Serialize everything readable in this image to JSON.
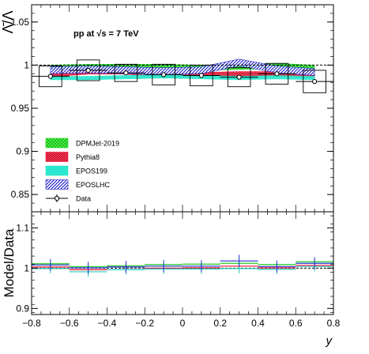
{
  "chart_data": [
    {
      "type": "scatter",
      "panel": "top",
      "ylabel": "Λ̄/Λ",
      "annotation": "pp at √s = 7 TeV",
      "xlim": [
        -0.8,
        0.8
      ],
      "ylim": [
        0.83,
        1.07
      ],
      "yticks": [
        0.85,
        0.9,
        0.95,
        1,
        1.05
      ],
      "reference_line": 1.0,
      "legend_position": "bottom-left",
      "data": {
        "name": "Data",
        "x": [
          -0.7,
          -0.5,
          -0.3,
          -0.1,
          0.1,
          0.3,
          0.5,
          0.7
        ],
        "y": [
          0.987,
          0.994,
          0.991,
          0.989,
          0.988,
          0.986,
          0.99,
          0.981
        ],
        "syst_x_halfwidth": 0.06,
        "syst_y_halfwidth": [
          0.012,
          0.012,
          0.01,
          0.012,
          0.012,
          0.011,
          0.012,
          0.013
        ],
        "stat_y_halfwidth": [
          0.002,
          0.002,
          0.002,
          0.002,
          0.002,
          0.002,
          0.002,
          0.002
        ]
      },
      "models": [
        {
          "name": "DPMJet-2019",
          "color": "#22dd22",
          "pattern": "crosshatch",
          "y": [
            0.997,
            0.998,
            0.998,
            0.998,
            0.997,
            0.998,
            0.999,
            0.997
          ],
          "band_halfwidth": 0.003
        },
        {
          "name": "Pythia8",
          "color": "#ee1133",
          "pattern": "dense",
          "y": [
            0.989,
            0.992,
            0.992,
            0.988,
            0.989,
            0.99,
            0.99,
            0.988
          ],
          "band_halfwidth": 0.0025
        },
        {
          "name": "EPOS199",
          "color": "#22e8c8",
          "pattern": "solid",
          "y": [
            0.985,
            0.985,
            0.986,
            0.987,
            0.986,
            0.985,
            0.986,
            0.985
          ],
          "band_halfwidth": 0.002
        },
        {
          "name": "EPOSLHC",
          "color": "#2222cc",
          "pattern": "hatch",
          "y": [
            0.994,
            0.995,
            0.994,
            0.993,
            0.994,
            1.003,
            0.995,
            0.992
          ],
          "band_halfwidth": 0.004
        }
      ]
    },
    {
      "type": "scatter",
      "panel": "bottom",
      "xlabel": "y",
      "ylabel": "Model/Data",
      "xlim": [
        -0.8,
        0.8
      ],
      "ylim": [
        0.885,
        1.14
      ],
      "xticks": [
        -0.8,
        -0.6,
        -0.4,
        -0.2,
        0,
        0.2,
        0.4,
        0.6,
        0.8
      ],
      "yticks": [
        0.9,
        1,
        1.1
      ],
      "reference_line": 1.0,
      "series": [
        {
          "name": "DPMJet-2019",
          "color": "#22cc22",
          "y": [
            1.011,
            1.004,
            1.006,
            1.009,
            1.01,
            1.012,
            1.009,
            1.016
          ],
          "err": 0.004
        },
        {
          "name": "Pythia8",
          "color": "#ee1133",
          "y": [
            1.003,
            0.996,
            1.003,
            1.0,
            1.001,
            1.005,
            1.001,
            1.007
          ],
          "err": 0.004
        },
        {
          "name": "EPOS199",
          "color": "#22ccbb",
          "y": [
            0.999,
            0.991,
            0.996,
            0.998,
            0.998,
            0.999,
            0.997,
            1.004
          ],
          "err": 0.012
        },
        {
          "name": "EPOSLHC",
          "color": "#2233cc",
          "y": [
            1.008,
            1.001,
            1.003,
            1.005,
            1.005,
            1.018,
            1.004,
            1.012
          ],
          "err": 0.015
        }
      ]
    }
  ]
}
